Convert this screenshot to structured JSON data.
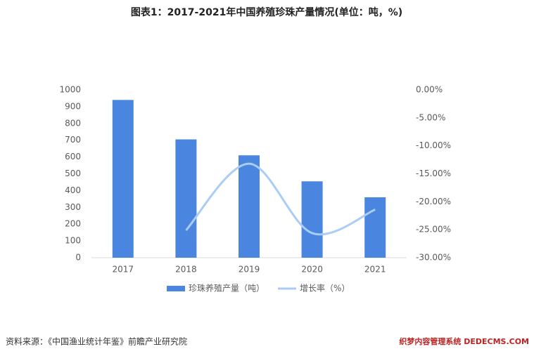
{
  "chart_data": {
    "type": "bar",
    "title": "图表1：2017-2021年中国养殖珍珠产量情况(单位：吨，%)",
    "categories": [
      "2017",
      "2018",
      "2019",
      "2020",
      "2021"
    ],
    "series": [
      {
        "name": "珍珠养殖产量（吨）",
        "color": "#4a86e0",
        "type": "bar",
        "values": [
          940,
          705,
          610,
          455,
          360
        ]
      },
      {
        "name": "增长率（%）",
        "color": "#a9cdf5",
        "type": "line",
        "axis": "y2",
        "values": [
          null,
          -25.1,
          -13.2,
          -25.6,
          -21.4
        ]
      }
    ],
    "ylim": [
      0,
      1000
    ],
    "yticks": [
      0,
      100,
      200,
      300,
      400,
      500,
      600,
      700,
      800,
      900,
      1000
    ],
    "y2lim": [
      -30,
      0
    ],
    "y2ticks": [
      {
        "value": 0,
        "label": "0.00%"
      },
      {
        "value": -5,
        "label": "-5.00%"
      },
      {
        "value": -10,
        "label": "-10.00%"
      },
      {
        "value": -15,
        "label": "-15.00%"
      },
      {
        "value": -20,
        "label": "-20.00%"
      },
      {
        "value": -25,
        "label": "-25.00%"
      },
      {
        "value": -30,
        "label": "-30.00%"
      }
    ],
    "grid": false,
    "source": "资料来源：《中国渔业统计年鉴》前瞻产业研究院",
    "watermark": "织梦内容管理系统 DEDECMS.COM"
  }
}
